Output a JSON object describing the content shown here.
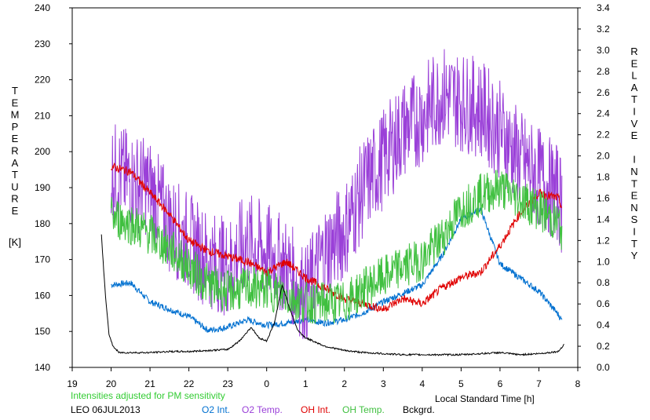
{
  "chart_data": {
    "type": "line",
    "left_axis": {
      "title_letters": [
        "T",
        "E",
        "M",
        "P",
        "E",
        "R",
        "A",
        "T",
        "U",
        "R",
        "E"
      ],
      "unit": "[K]",
      "ylim": [
        140,
        240
      ],
      "ticks": [
        "140",
        "150",
        "160",
        "170",
        "180",
        "190",
        "200",
        "210",
        "220",
        "230",
        "240"
      ]
    },
    "right_axis": {
      "title_letters": [
        "R",
        "E",
        "L",
        "A",
        "T",
        "I",
        "V",
        "E",
        "",
        "I",
        "N",
        "T",
        "E",
        "N",
        "S",
        "I",
        "T",
        "Y"
      ],
      "ylim": [
        0.0,
        3.4
      ],
      "ticks": [
        "0.0",
        "0.2",
        "0.4",
        "0.6",
        "0.8",
        "1.0",
        "1.2",
        "1.4",
        "1.6",
        "1.8",
        "2.0",
        "2.2",
        "2.4",
        "2.6",
        "2.8",
        "3.0",
        "3.2",
        "3.4"
      ]
    },
    "x_axis": {
      "xlim": [
        19,
        32
      ],
      "ticks": [
        "19",
        "20",
        "21",
        "22",
        "23",
        "0",
        "1",
        "2",
        "3",
        "4",
        "5",
        "6",
        "7",
        "8"
      ],
      "label": "Local Standard Time [h]"
    },
    "note": "Intensities adjusted for PM sensitivity",
    "station": "LEO 06JUL2013",
    "series": [
      {
        "name": "O2 Int.",
        "color": "#0070d0",
        "axis": "right",
        "x": [
          20.0,
          20.5,
          21.0,
          21.5,
          22.0,
          22.5,
          23.0,
          23.5,
          24.0,
          24.5,
          25.0,
          25.5,
          26.0,
          26.5,
          27.0,
          27.5,
          28.0,
          28.5,
          29.0,
          29.5,
          30.0,
          30.5,
          31.0,
          31.5,
          31.6
        ],
        "y": [
          0.78,
          0.8,
          0.62,
          0.55,
          0.48,
          0.35,
          0.38,
          0.45,
          0.4,
          0.42,
          0.45,
          0.42,
          0.45,
          0.52,
          0.62,
          0.7,
          0.78,
          1.05,
          1.4,
          1.5,
          0.98,
          0.85,
          0.72,
          0.5,
          0.44
        ]
      },
      {
        "name": "O2 Temp.",
        "color": "#9a40d8",
        "axis": "left",
        "x": [
          20.0,
          20.5,
          21.0,
          21.5,
          22.0,
          22.5,
          23.0,
          23.5,
          24.0,
          24.5,
          25.0,
          25.5,
          26.0,
          26.5,
          27.0,
          27.5,
          28.0,
          28.5,
          29.0,
          29.5,
          30.0,
          30.5,
          31.0,
          31.5,
          31.6
        ],
        "y": [
          195,
          192,
          190,
          180,
          175,
          170,
          168,
          175,
          172,
          168,
          160,
          172,
          178,
          190,
          198,
          206,
          210,
          216,
          214,
          212,
          206,
          198,
          193,
          188,
          185
        ]
      },
      {
        "name": "OH Int.",
        "color": "#e00000",
        "axis": "right",
        "x": [
          20.0,
          20.5,
          21.0,
          21.5,
          22.0,
          22.5,
          23.0,
          23.5,
          24.0,
          24.5,
          25.0,
          25.5,
          26.0,
          26.5,
          27.0,
          27.5,
          28.0,
          28.5,
          29.0,
          29.5,
          30.0,
          30.5,
          31.0,
          31.5,
          31.6
        ],
        "y": [
          1.9,
          1.85,
          1.65,
          1.45,
          1.2,
          1.1,
          1.05,
          1.0,
          0.9,
          1.0,
          0.85,
          0.75,
          0.65,
          0.6,
          0.55,
          0.65,
          0.6,
          0.75,
          0.85,
          0.9,
          1.15,
          1.45,
          1.65,
          1.6,
          1.5
        ]
      },
      {
        "name": "OH Temp.",
        "color": "#40c040",
        "axis": "left",
        "x": [
          20.0,
          20.5,
          21.0,
          21.5,
          22.0,
          22.5,
          23.0,
          23.5,
          24.0,
          24.5,
          25.0,
          25.5,
          26.0,
          26.5,
          27.0,
          27.5,
          28.0,
          28.5,
          29.0,
          29.5,
          30.0,
          30.5,
          31.0,
          31.5,
          31.6
        ],
        "y": [
          182,
          180,
          177,
          173,
          168,
          163,
          161,
          162,
          162,
          160,
          158,
          158,
          158,
          162,
          165,
          168,
          170,
          176,
          184,
          188,
          190,
          187,
          184,
          180,
          178
        ]
      },
      {
        "name": "Bckgrd.",
        "color": "#000000",
        "axis": "right",
        "x": [
          19.75,
          19.85,
          19.95,
          20.05,
          20.2,
          20.5,
          21.0,
          21.5,
          22.0,
          22.5,
          23.0,
          23.3,
          23.6,
          23.8,
          24.0,
          24.2,
          24.4,
          24.6,
          24.8,
          25.0,
          25.5,
          26.0,
          26.5,
          27.0,
          27.5,
          28.0,
          28.5,
          29.0,
          29.5,
          30.0,
          30.5,
          31.0,
          31.5,
          31.65
        ],
        "y": [
          1.25,
          0.7,
          0.3,
          0.2,
          0.14,
          0.14,
          0.14,
          0.15,
          0.15,
          0.16,
          0.17,
          0.25,
          0.38,
          0.28,
          0.25,
          0.42,
          0.78,
          0.55,
          0.35,
          0.28,
          0.2,
          0.16,
          0.14,
          0.13,
          0.12,
          0.12,
          0.12,
          0.12,
          0.13,
          0.14,
          0.12,
          0.13,
          0.15,
          0.22
        ]
      }
    ]
  }
}
